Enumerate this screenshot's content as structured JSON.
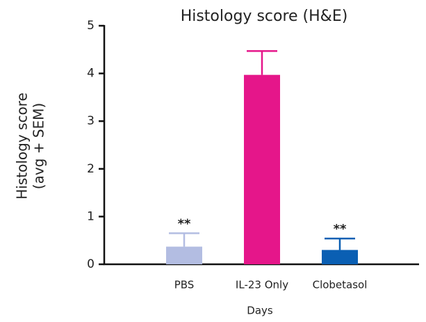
{
  "chart_data": {
    "type": "bar",
    "title": "Histology score (H&E)",
    "y_label": [
      "Histology score",
      "(avg + SEM)"
    ],
    "x_label": "Days",
    "categories": [
      "PBS",
      "IL-23 Only",
      "Clobetasol"
    ],
    "values": [
      0.37,
      3.97,
      0.3
    ],
    "errors": [
      0.28,
      0.5,
      0.24
    ],
    "colors": [
      "#b3bde2",
      "#e5168a",
      "#0a5fb3"
    ],
    "annotations": [
      "**",
      null,
      "**"
    ],
    "ylim": [
      0,
      5
    ],
    "yticks": [
      0,
      1,
      2,
      3,
      4,
      5
    ],
    "grid": false
  }
}
